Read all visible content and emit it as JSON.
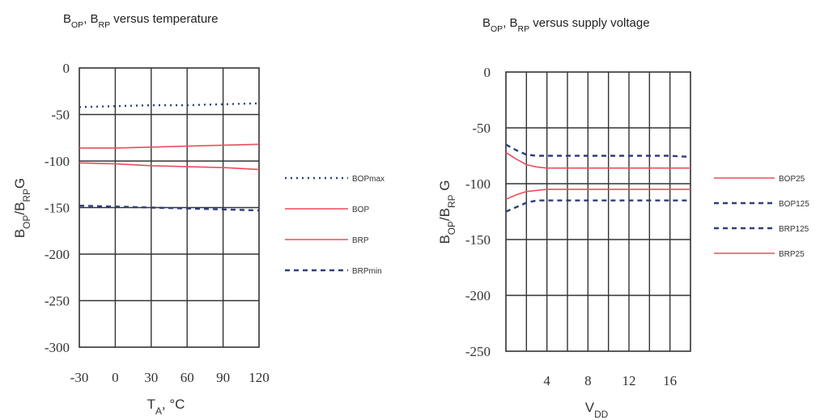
{
  "chart_data": [
    {
      "type": "line",
      "title": {
        "parts": [
          [
            "B",
            ""
          ],
          [
            "OP",
            "sub"
          ],
          [
            ", B",
            ""
          ],
          [
            "RP",
            "sub"
          ],
          [
            " versus temperature",
            ""
          ]
        ]
      },
      "xlabel": {
        "parts": [
          [
            "T",
            ""
          ],
          [
            "A",
            "sub"
          ],
          [
            ", °C",
            ""
          ]
        ]
      },
      "ylabel": {
        "parts": [
          [
            "B",
            ""
          ],
          [
            "OP",
            "sub"
          ],
          [
            "/B",
            ""
          ],
          [
            "RP",
            "sub"
          ],
          [
            "G",
            ""
          ]
        ]
      },
      "x_ticks": [
        "-30",
        "0",
        "30",
        "60",
        "90",
        "120"
      ],
      "y_ticks": [
        "0",
        "-50",
        "-100",
        "-150",
        "-200",
        "-250",
        "-300"
      ],
      "xlim": [
        -30,
        120
      ],
      "ylim": [
        -300,
        0
      ],
      "grid": true,
      "legend_position": "right",
      "series": [
        {
          "name": "BOPmax",
          "color": "#2f3f7a",
          "dash": "dot",
          "x": [
            -30,
            0,
            30,
            60,
            90,
            120
          ],
          "y": [
            -42,
            -41,
            -40,
            -40,
            -39,
            -38
          ]
        },
        {
          "name": "BOP",
          "color": "#ee4c5c",
          "dash": "solid",
          "x": [
            -30,
            0,
            30,
            60,
            90,
            120
          ],
          "y": [
            -86,
            -86,
            -85,
            -84,
            -83,
            -82
          ]
        },
        {
          "name": "BRP",
          "color": "#ee4c5c",
          "dash": "solid",
          "x": [
            -30,
            0,
            30,
            60,
            90,
            120
          ],
          "y": [
            -102,
            -103,
            -105,
            -106,
            -107,
            -109
          ]
        },
        {
          "name": "BRPmin",
          "color": "#2f3f7a",
          "dash": "dash",
          "x": [
            -30,
            0,
            30,
            60,
            90,
            120
          ],
          "y": [
            -148,
            -149,
            -150,
            -151,
            -152,
            -153
          ]
        }
      ]
    },
    {
      "type": "line",
      "title": {
        "parts": [
          [
            "B",
            ""
          ],
          [
            "OP",
            "sub"
          ],
          [
            ", B",
            ""
          ],
          [
            "RP",
            "sub"
          ],
          [
            " versus supply voltage",
            ""
          ]
        ]
      },
      "xlabel": {
        "parts": [
          [
            "V",
            ""
          ],
          [
            "DD",
            "sub"
          ]
        ]
      },
      "ylabel": {
        "parts": [
          [
            "B",
            ""
          ],
          [
            "OP",
            "sub"
          ],
          [
            "/B",
            ""
          ],
          [
            "RP",
            "sub"
          ],
          [
            " G",
            ""
          ]
        ]
      },
      "x_ticks": [
        "4",
        "8",
        "12",
        "16"
      ],
      "x_tick_values": [
        4,
        8,
        12,
        16
      ],
      "y_ticks": [
        "0",
        "-50",
        "-100",
        "-150",
        "-200",
        "-250"
      ],
      "xlim": [
        0,
        18
      ],
      "ylim": [
        -250,
        0
      ],
      "grid": true,
      "legend_position": "right",
      "series": [
        {
          "name": "BOP25",
          "color": "#ee4c5c",
          "dash": "solid",
          "x": [
            0,
            1,
            2,
            3,
            4,
            6,
            8,
            10,
            12,
            14,
            16,
            18
          ],
          "y": [
            -72,
            -78,
            -83,
            -85,
            -86,
            -86,
            -86,
            -86,
            -86,
            -86,
            -86,
            -86
          ]
        },
        {
          "name": "BOP125",
          "color": "#2f3f7a",
          "dash": "dash",
          "x": [
            0,
            1,
            2,
            3,
            4,
            6,
            8,
            10,
            12,
            14,
            16,
            18
          ],
          "y": [
            -65,
            -70,
            -74,
            -75,
            -75,
            -75,
            -75,
            -75,
            -75,
            -75,
            -75,
            -76
          ]
        },
        {
          "name": "BRP125",
          "color": "#2f3f7a",
          "dash": "dash",
          "x": [
            0,
            1,
            2,
            3,
            4,
            6,
            8,
            10,
            12,
            14,
            16,
            18
          ],
          "y": [
            -125,
            -121,
            -117,
            -115,
            -115,
            -115,
            -115,
            -115,
            -115,
            -115,
            -115,
            -115
          ]
        },
        {
          "name": "BRP25",
          "color": "#ee4c5c",
          "dash": "solid",
          "x": [
            0,
            1,
            2,
            3,
            4,
            6,
            8,
            10,
            12,
            14,
            16,
            18
          ],
          "y": [
            -114,
            -110,
            -107,
            -106,
            -105,
            -105,
            -105,
            -105,
            -105,
            -105,
            -105,
            -105
          ]
        }
      ]
    }
  ]
}
